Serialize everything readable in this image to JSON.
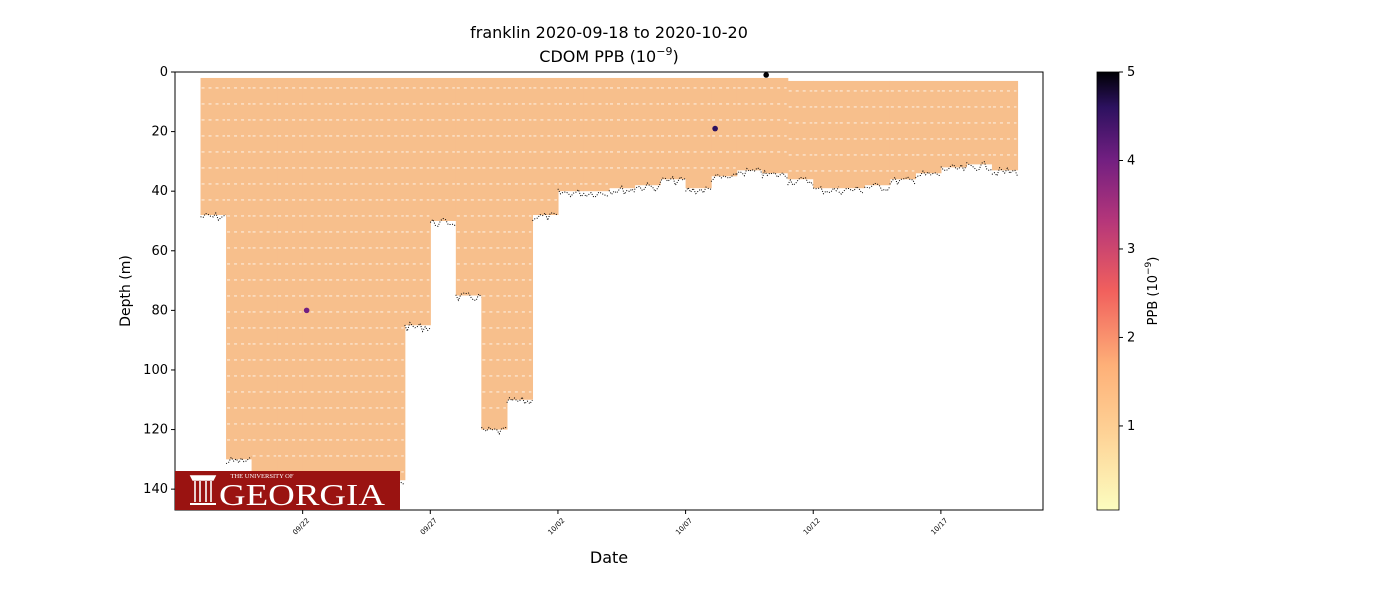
{
  "chart_data": {
    "type": "scatter",
    "title": "franklin 2020-09-18 to 2020-10-20",
    "subtitle": "CDOM PPB (10⁻⁹)",
    "subtitle_parts": {
      "text": "CDOM PPB (10",
      "exp": "−9",
      "close": ")"
    },
    "xlabel": "Date",
    "ylabel": "Depth (m)",
    "x_ticks": [
      "09/22",
      "09/27",
      "10/02",
      "10/07",
      "10/12",
      "10/17"
    ],
    "xlim": [
      "2020-09-17",
      "2020-10-21"
    ],
    "y_ticks": [
      0,
      20,
      40,
      60,
      80,
      100,
      120,
      140
    ],
    "ylim": [
      147,
      0
    ],
    "y_inverted": true,
    "colorbar": {
      "label": "PPB (10⁻⁹)",
      "label_parts": {
        "text": "PPB (10",
        "exp": "−9",
        "close": ")"
      },
      "ticks": [
        1,
        2,
        3,
        4,
        5
      ],
      "range": [
        0.05,
        5
      ],
      "colormap": "magma_r",
      "colors": [
        "#fcfdbf",
        "#feb078",
        "#f1605d",
        "#b5367a",
        "#721f81",
        "#2c115f",
        "#000004"
      ]
    },
    "series": [
      {
        "name": "profiles",
        "x": [
          "2020-09-18",
          "2020-09-19",
          "2020-09-20",
          "2020-09-21",
          "2020-09-22",
          "2020-09-23",
          "2020-09-24",
          "2020-09-25",
          "2020-09-26",
          "2020-09-27",
          "2020-09-28",
          "2020-09-29",
          "2020-09-30",
          "2020-10-01",
          "2020-10-02",
          "2020-10-03",
          "2020-10-04",
          "2020-10-05",
          "2020-10-06",
          "2020-10-07",
          "2020-10-08",
          "2020-10-09",
          "2020-10-10",
          "2020-10-11",
          "2020-10-12",
          "2020-10-13",
          "2020-10-14",
          "2020-10-15",
          "2020-10-16",
          "2020-10-17",
          "2020-10-18",
          "2020-10-19"
        ],
        "max_depth": [
          48,
          130,
          136,
          137,
          138,
          137,
          137,
          137,
          85,
          50,
          75,
          120,
          110,
          48,
          40,
          40,
          39,
          38,
          36,
          39,
          35,
          33,
          34,
          36,
          39,
          39,
          38,
          36,
          34,
          32,
          31,
          33
        ],
        "typical_value": 0.8
      }
    ],
    "anomalies": [
      {
        "date": "2020-09-22",
        "depth": 80,
        "value": 3.5
      },
      {
        "date": "2020-10-08",
        "depth": 19,
        "value": 4.5
      },
      {
        "date": "2020-10-10",
        "depth": 1,
        "value": 5.0
      }
    ],
    "logo": {
      "small_text": "THE UNIVERSITY OF",
      "name": "GEORGIA",
      "bg_color": "#9a1311",
      "fg_color": "#ffffff"
    },
    "colors": {
      "fill": "#f7bf8c",
      "point_edge": "#efa476",
      "bottom": "#000000"
    }
  }
}
